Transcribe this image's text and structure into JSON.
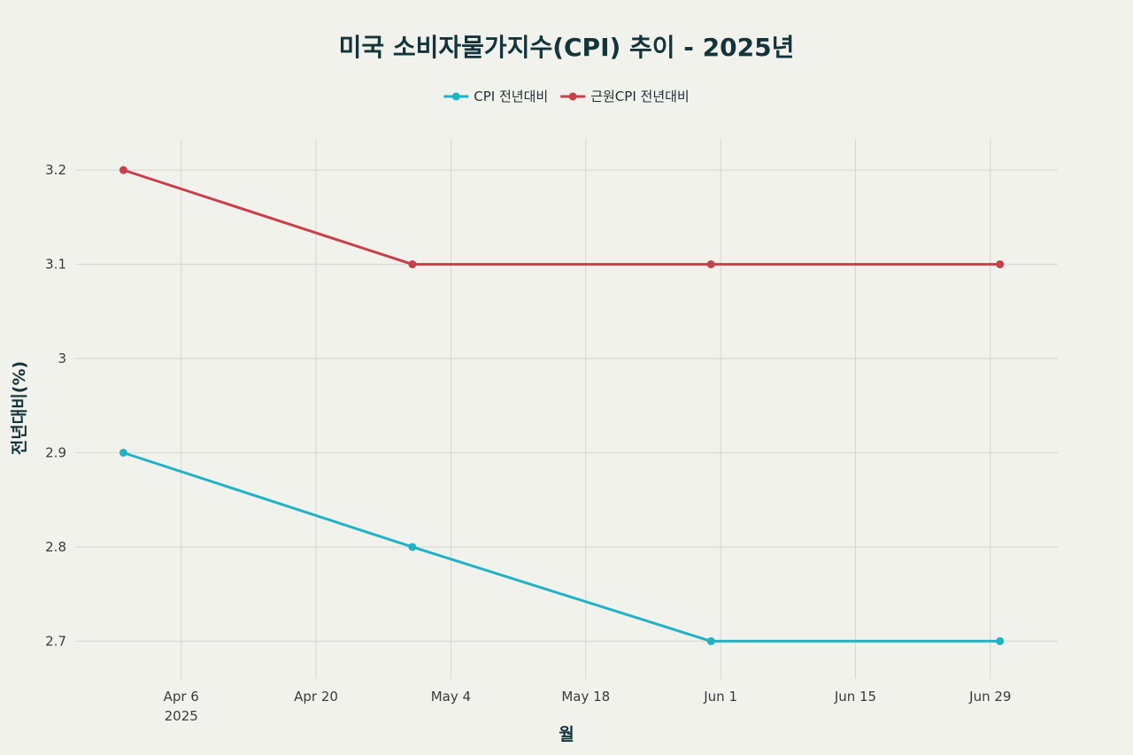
{
  "chart_data": {
    "type": "line",
    "title": "미국 소비자물가지수(CPI) 추이 - 2025년",
    "xlabel": "월",
    "ylabel": "전년대비(%)",
    "x": [
      "2025-03-31",
      "2025-04-30",
      "2025-05-31",
      "2025-06-30"
    ],
    "xlim": [
      "2025-03-26",
      "2025-07-06"
    ],
    "ylim": [
      2.66,
      3.233
    ],
    "x_ticks": [
      {
        "date": "2025-04-06",
        "label": "Apr 6",
        "sublabel": "2025"
      },
      {
        "date": "2025-04-20",
        "label": "Apr 20",
        "sublabel": ""
      },
      {
        "date": "2025-05-04",
        "label": "May 4",
        "sublabel": ""
      },
      {
        "date": "2025-05-18",
        "label": "May 18",
        "sublabel": ""
      },
      {
        "date": "2025-06-01",
        "label": "Jun 1",
        "sublabel": ""
      },
      {
        "date": "2025-06-15",
        "label": "Jun 15",
        "sublabel": ""
      },
      {
        "date": "2025-06-29",
        "label": "Jun 29",
        "sublabel": ""
      }
    ],
    "y_ticks": [
      {
        "value": 2.7,
        "label": "2.7"
      },
      {
        "value": 2.8,
        "label": "2.8"
      },
      {
        "value": 2.9,
        "label": "2.9"
      },
      {
        "value": 3.0,
        "label": "3"
      },
      {
        "value": 3.1,
        "label": "3.1"
      },
      {
        "value": 3.2,
        "label": "3.2"
      }
    ],
    "grid": true,
    "legend_position": "top-center",
    "series": [
      {
        "name": "CPI 전년대비",
        "color": "#1fb3c7",
        "values": [
          2.9,
          2.8,
          2.7,
          2.7
        ]
      },
      {
        "name": "근원CPI 전년대비",
        "color": "#c8404a",
        "values": [
          3.2,
          3.1,
          3.1,
          3.1
        ]
      }
    ]
  }
}
